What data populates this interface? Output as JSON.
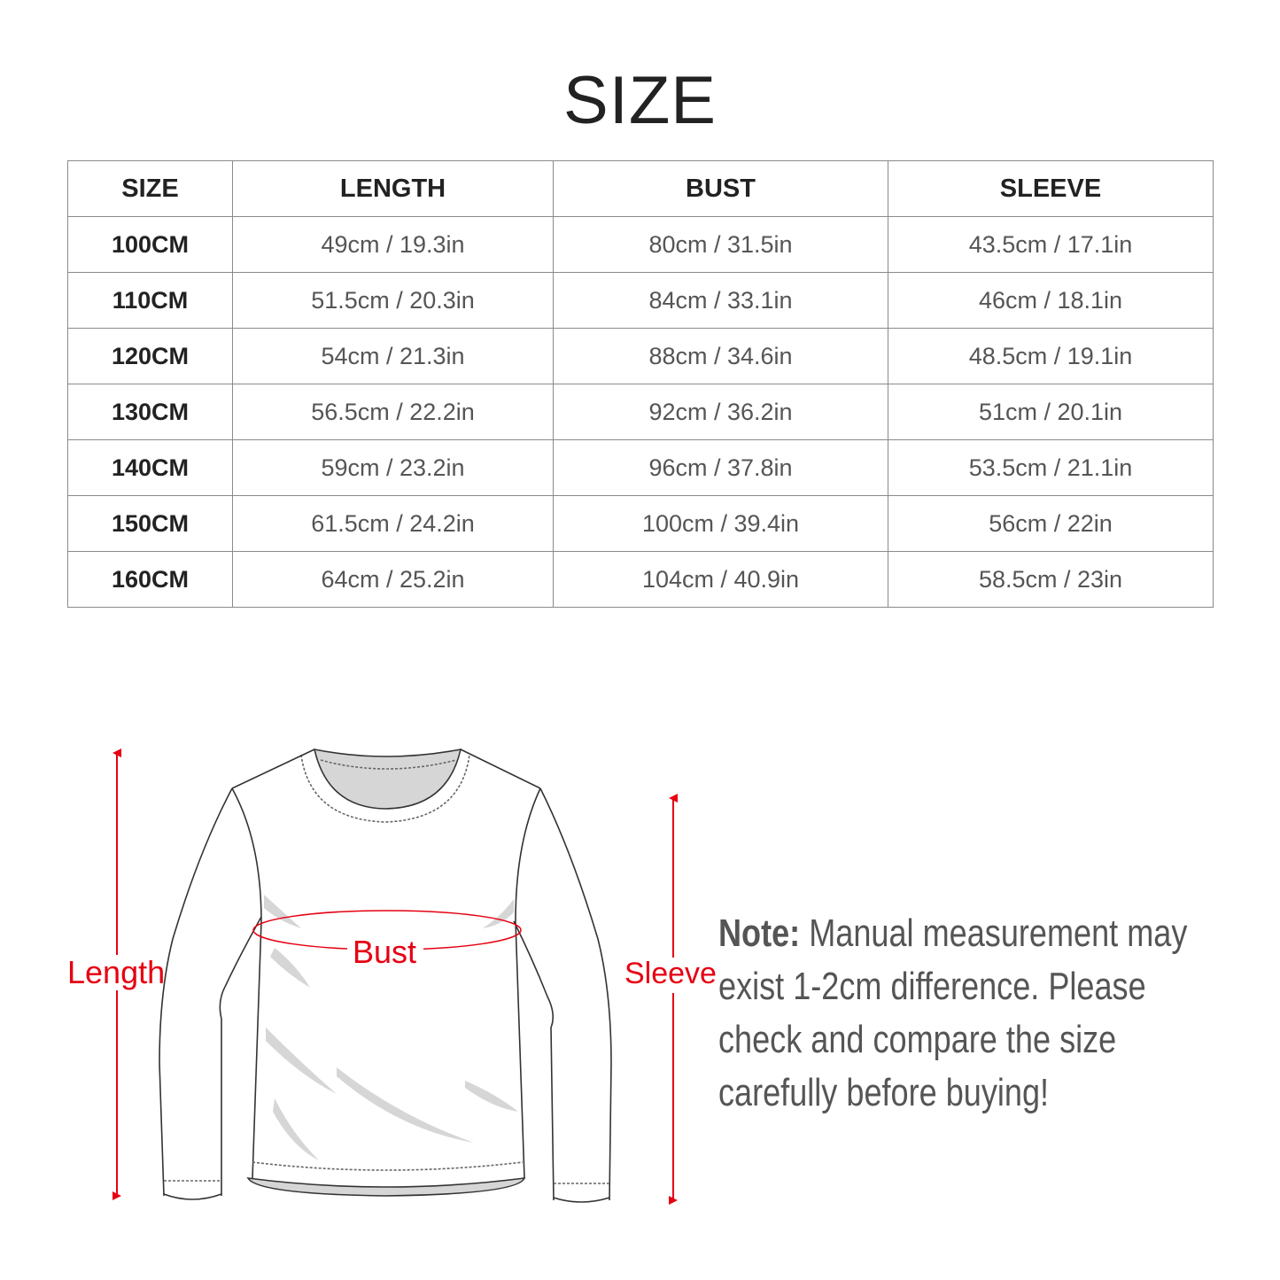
{
  "title": "SIZE",
  "table": {
    "headers": [
      "SIZE",
      "LENGTH",
      "BUST",
      "SLEEVE"
    ],
    "rows": [
      [
        "100CM",
        "49cm / 19.3in",
        "80cm / 31.5in",
        "43.5cm / 17.1in"
      ],
      [
        "110CM",
        "51.5cm / 20.3in",
        "84cm / 33.1in",
        "46cm / 18.1in"
      ],
      [
        "120CM",
        "54cm / 21.3in",
        "88cm / 34.6in",
        "48.5cm / 19.1in"
      ],
      [
        "130CM",
        "56.5cm / 22.2in",
        "92cm / 36.2in",
        "51cm / 20.1in"
      ],
      [
        "140CM",
        "59cm / 23.2in",
        "96cm / 37.8in",
        "53.5cm / 21.1in"
      ],
      [
        "150CM",
        "61.5cm / 24.2in",
        "100cm / 39.4in",
        "56cm / 22in"
      ],
      [
        "160CM",
        "64cm / 25.2in",
        "104cm / 40.9in",
        "58.5cm / 23in"
      ]
    ]
  },
  "diagram": {
    "length_label": "Length",
    "bust_label": "Bust",
    "sleeve_label": "Sleeve",
    "accent_color": "#e60012"
  },
  "note": {
    "prefix": "Note:",
    "lines": [
      "Manual measurement may",
      "exist 1-2cm difference. Please",
      "check and compare the size",
      "carefully before buying!"
    ]
  }
}
